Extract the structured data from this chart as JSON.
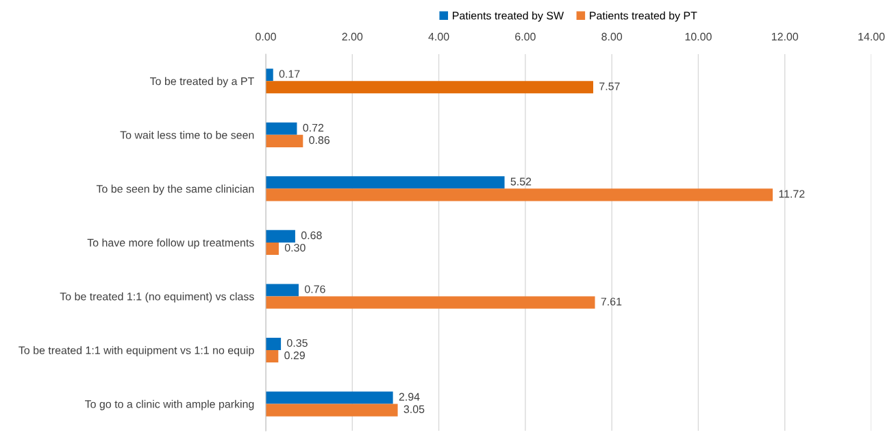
{
  "chart_data": {
    "type": "bar",
    "orientation": "horizontal",
    "categories": [
      "To be treated by a PT",
      "To wait less time to be seen",
      "To be seen by the same clinician",
      "To have more follow up treatments",
      "To be treated 1:1 (no equiment) vs class",
      "To be treated 1:1 with equipment vs 1:1 no equip",
      "To go to a clinic with ample parking"
    ],
    "series": [
      {
        "name": "Patients treated by SW",
        "color": "#0070c0",
        "values": [
          0.17,
          0.72,
          5.52,
          0.68,
          0.76,
          0.35,
          2.94
        ],
        "value_labels": [
          "0.17",
          "0.72",
          "5.52",
          "0.68",
          "0.76",
          "0.35",
          "2.94"
        ]
      },
      {
        "name": "Patients treated by PT",
        "color": "#ed7d31",
        "colors": [
          "#e36c09",
          "#ed7d31",
          "#ed7d31",
          "#ed7d31",
          "#ed7d31",
          "#ed7d31",
          "#ed7d31"
        ],
        "values": [
          7.57,
          0.86,
          11.72,
          0.3,
          7.61,
          0.29,
          3.05
        ],
        "value_labels": [
          "7.57",
          "0.86",
          "11.72",
          "0.30",
          "7.61",
          "0.29",
          "3.05"
        ]
      }
    ],
    "xlim": [
      0,
      14
    ],
    "xticks": [
      {
        "value": 0,
        "label": "0.00"
      },
      {
        "value": 2,
        "label": "2.00"
      },
      {
        "value": 4,
        "label": "4.00"
      },
      {
        "value": 6,
        "label": "6.00"
      },
      {
        "value": 8,
        "label": "8.00"
      },
      {
        "value": 10,
        "label": "10.00"
      },
      {
        "value": 12,
        "label": "12.00"
      },
      {
        "value": 14,
        "label": "14.00"
      }
    ],
    "grid": "x",
    "legend": "top"
  }
}
